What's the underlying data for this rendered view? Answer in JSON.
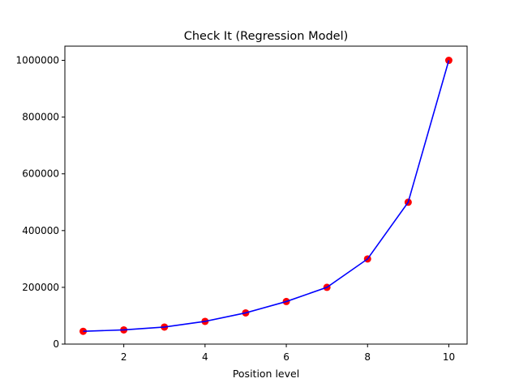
{
  "chart_data": {
    "type": "scatter",
    "title": "Check It (Regression Model)",
    "xlabel": "Position level",
    "ylabel": "",
    "xlim": [
      0.55,
      10.45
    ],
    "ylim": [
      0,
      1050000
    ],
    "xticks": [
      2,
      4,
      6,
      8,
      10
    ],
    "xtick_labels": [
      "2",
      "4",
      "6",
      "8",
      "10"
    ],
    "yticks": [
      0,
      200000,
      400000,
      600000,
      800000,
      1000000
    ],
    "ytick_labels": [
      "0",
      "200000",
      "400000",
      "600000",
      "800000",
      "1000000"
    ],
    "grid": false,
    "series": [
      {
        "kind": "scatter",
        "color": "#ff0000",
        "x": [
          1,
          2,
          3,
          4,
          5,
          6,
          7,
          8,
          9,
          10
        ],
        "y": [
          45000,
          50000,
          60000,
          80000,
          110000,
          150000,
          200000,
          300000,
          500000,
          1000000
        ]
      },
      {
        "kind": "line",
        "color": "#0000ff",
        "x": [
          1,
          2,
          3,
          4,
          5,
          6,
          7,
          8,
          9,
          10
        ],
        "y": [
          45000,
          50000,
          60000,
          80000,
          110000,
          150000,
          200000,
          300000,
          500000,
          1000000
        ]
      }
    ]
  }
}
